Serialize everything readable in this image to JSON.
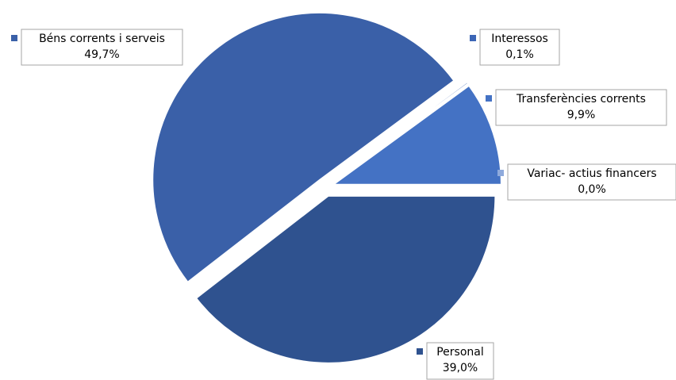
{
  "chart_data": {
    "type": "pie",
    "categories": [
      "Personal",
      "Béns corrents i serveis",
      "Interessos",
      "Transferències corrents",
      "Variac- actius financers"
    ],
    "values": [
      39.0,
      49.7,
      0.1,
      9.9,
      0.0
    ],
    "value_labels": [
      "39,0%",
      "49,7%",
      "0,1%",
      "9,9%",
      "0,0%"
    ],
    "colors": [
      "#2f528f",
      "#3a60a8",
      "#3c66b6",
      "#4472c4",
      "#8faadc"
    ]
  }
}
